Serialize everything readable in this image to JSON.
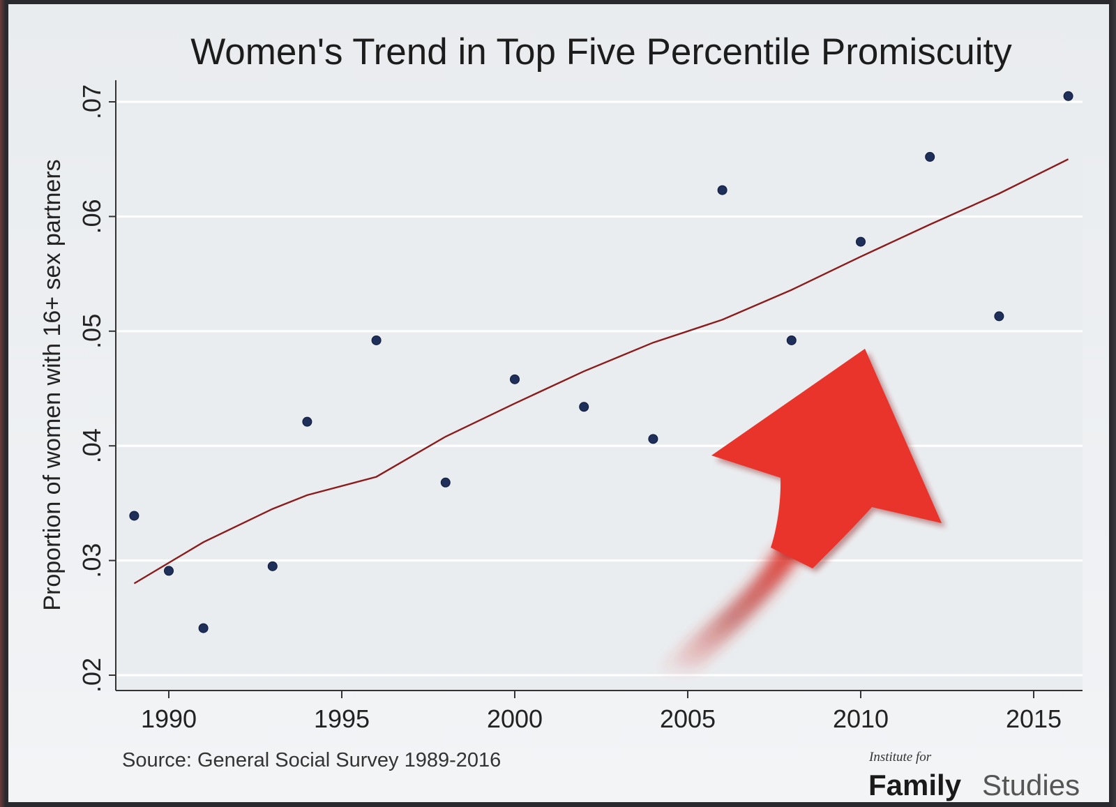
{
  "chart_data": {
    "type": "scatter",
    "title": "Women's Trend in Top Five Percentile Promiscuity",
    "xlabel": "",
    "ylabel": "Proportion of women with 16+ sex partners",
    "xlim": [
      1987.5,
      2016.5
    ],
    "ylim": [
      0.019,
      0.072
    ],
    "x_ticks": [
      {
        "value": 1990,
        "label": "1990"
      },
      {
        "value": 1995,
        "label": "1995"
      },
      {
        "value": 2000,
        "label": "2000"
      },
      {
        "value": 2005,
        "label": "2005"
      },
      {
        "value": 2010,
        "label": "2010"
      },
      {
        "value": 2015,
        "label": "2015"
      }
    ],
    "y_ticks": [
      {
        "value": 0.02,
        "label": ".02"
      },
      {
        "value": 0.03,
        "label": ".03"
      },
      {
        "value": 0.04,
        "label": ".04"
      },
      {
        "value": 0.05,
        "label": ".05"
      },
      {
        "value": 0.06,
        "label": ".06"
      },
      {
        "value": 0.07,
        "label": ".07"
      }
    ],
    "grid": true,
    "points": [
      {
        "x": 1989,
        "y": 0.0339
      },
      {
        "x": 1990,
        "y": 0.0291
      },
      {
        "x": 1991,
        "y": 0.0241
      },
      {
        "x": 1993,
        "y": 0.0295
      },
      {
        "x": 1994,
        "y": 0.0421
      },
      {
        "x": 1996,
        "y": 0.0492
      },
      {
        "x": 1998,
        "y": 0.0368
      },
      {
        "x": 2000,
        "y": 0.0458
      },
      {
        "x": 2002,
        "y": 0.0434
      },
      {
        "x": 2004,
        "y": 0.0406
      },
      {
        "x": 2006,
        "y": 0.0623
      },
      {
        "x": 2008,
        "y": 0.0492
      },
      {
        "x": 2010,
        "y": 0.0578
      },
      {
        "x": 2012,
        "y": 0.0652
      },
      {
        "x": 2014,
        "y": 0.0513
      },
      {
        "x": 2016,
        "y": 0.0705
      }
    ],
    "trend_line": [
      {
        "x": 1989,
        "y": 0.028
      },
      {
        "x": 1990,
        "y": 0.0298
      },
      {
        "x": 1991,
        "y": 0.0316
      },
      {
        "x": 1993,
        "y": 0.0345
      },
      {
        "x": 1994,
        "y": 0.0357
      },
      {
        "x": 1996,
        "y": 0.0373
      },
      {
        "x": 1998,
        "y": 0.0408
      },
      {
        "x": 2000,
        "y": 0.0437
      },
      {
        "x": 2002,
        "y": 0.0465
      },
      {
        "x": 2004,
        "y": 0.049
      },
      {
        "x": 2006,
        "y": 0.051
      },
      {
        "x": 2008,
        "y": 0.0536
      },
      {
        "x": 2010,
        "y": 0.0565
      },
      {
        "x": 2012,
        "y": 0.0593
      },
      {
        "x": 2014,
        "y": 0.062
      },
      {
        "x": 2016,
        "y": 0.065
      }
    ],
    "colors": {
      "points": "#1e2f5a",
      "trend": "#8c1c1c",
      "grid": "#ffffff",
      "arrow": "#e8342a"
    },
    "annotation": "red-upward-curved-arrow"
  },
  "source": "Source: General Social Survey 1989-2016",
  "logo": {
    "small": "Institute for",
    "family": "Family",
    "studies": "Studies"
  }
}
